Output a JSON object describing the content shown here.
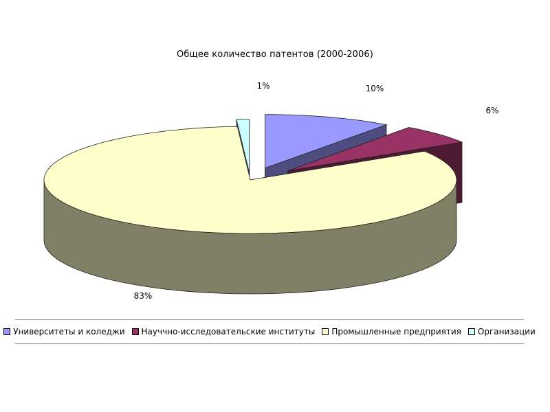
{
  "chart_data": {
    "type": "pie",
    "variant": "3d-exploded",
    "title": "Общее количество патентов (2000-2006)",
    "categories": [
      "Университеты и коледжи",
      "Науччно-исследовательские институты",
      "Промышленные предприятия",
      "Организации"
    ],
    "values": [
      10,
      6,
      83,
      1
    ],
    "data_labels": [
      "10%",
      "6%",
      "83%",
      "1%"
    ],
    "colors": [
      "#9999ff",
      "#993366",
      "#ffffcc",
      "#ccffff"
    ],
    "legend_position": "bottom"
  }
}
